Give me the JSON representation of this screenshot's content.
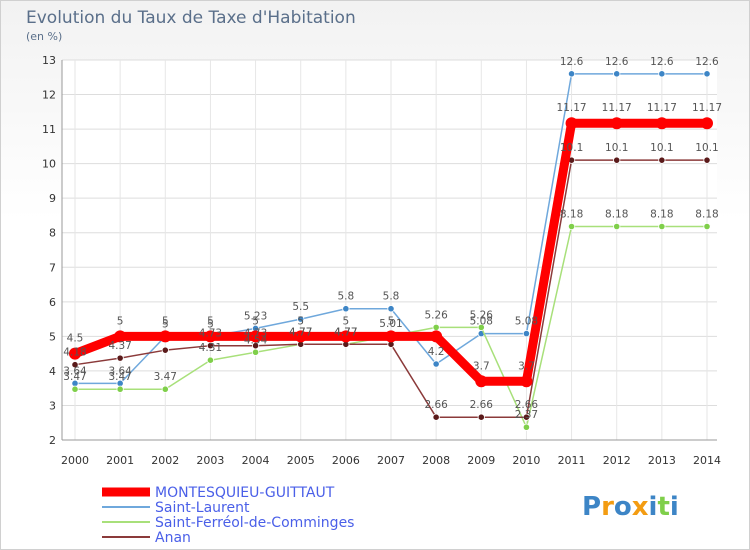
{
  "chart_data": {
    "type": "line",
    "title": "Evolution du Taux de Taxe d'Habitation",
    "subtitle": "(en %)",
    "xlabel": "",
    "ylabel": "",
    "ylim": [
      2,
      13
    ],
    "yticks": [
      2,
      3,
      4,
      5,
      6,
      7,
      8,
      9,
      10,
      11,
      12,
      13
    ],
    "grid": true,
    "legend_position": "bottom-left",
    "x": [
      "2000",
      "2001",
      "2002",
      "2003",
      "2004",
      "2005",
      "2006",
      "2007",
      "2008",
      "2009",
      "2010",
      "2011",
      "2012",
      "2013",
      "2014"
    ],
    "series": [
      {
        "name": "Saint-Laurent",
        "color": "#6fa8dc",
        "marker": "#3d85c6",
        "values": [
          3.64,
          3.64,
          5,
          5,
          5.23,
          5.5,
          5.8,
          5.8,
          4.2,
          5.08,
          5.08,
          12.6,
          12.6,
          12.6,
          12.6
        ],
        "labels": [
          "3.64",
          "3.64",
          "5",
          "5",
          "5.23",
          "5.5",
          "5.8",
          "5.8",
          "4.2",
          "5.08",
          "5.08",
          "12.6",
          "12.6",
          "12.6",
          "12.6"
        ]
      },
      {
        "name": "Saint-Ferréol-de-Comminges",
        "color": "#a8e07a",
        "marker": "#7fcf4a",
        "values": [
          3.47,
          3.47,
          3.47,
          4.31,
          4.54,
          4.77,
          4.77,
          5.01,
          5.26,
          5.26,
          2.37,
          8.18,
          8.18,
          8.18,
          8.18
        ],
        "labels": [
          "3.47",
          "3.47",
          "3.47",
          "4.31",
          "4.54",
          "4.77",
          "4.77",
          "5.01",
          "5.26",
          "5.26",
          "2.37",
          "8.18",
          "8.18",
          "8.18",
          "8.18"
        ]
      },
      {
        "name": "Anan",
        "color": "#8b3a3a",
        "marker": "#5a1a1a",
        "values": [
          4.18,
          4.37,
          4.6,
          4.73,
          4.73,
          4.77,
          4.77,
          4.77,
          2.66,
          2.66,
          2.66,
          10.1,
          10.1,
          10.1,
          10.1
        ],
        "labels": [
          "4.18",
          "4.37",
          "",
          "4.73",
          "4.73",
          "4.77",
          "4.77",
          "",
          "2.66",
          "2.66",
          "2.66",
          "10.1",
          "10.1",
          "10.1",
          "10.1"
        ]
      },
      {
        "name": "MONTESQUIEU-GUITTAUT",
        "color": "#ff0000",
        "marker": "#ff0000",
        "thick": true,
        "values": [
          4.5,
          5,
          5,
          5,
          5,
          5,
          5,
          5,
          5,
          3.7,
          3.7,
          11.17,
          11.17,
          11.17,
          11.17
        ],
        "labels": [
          "4.5",
          "5",
          "5",
          "5",
          "5",
          "5",
          "5",
          "5",
          "",
          "3.7",
          "3.7",
          "11.17",
          "11.17",
          "11.17",
          "11.17"
        ]
      }
    ],
    "legend": [
      {
        "name": "MONTESQUIEU-GUITTAUT",
        "color": "#ff0000",
        "thick": true
      },
      {
        "name": "Saint-Laurent",
        "color": "#6fa8dc",
        "thick": false
      },
      {
        "name": "Saint-Ferréol-de-Comminges",
        "color": "#a8e07a",
        "thick": false
      },
      {
        "name": "Anan",
        "color": "#8b3a3a",
        "thick": false
      }
    ]
  },
  "logo": {
    "text": "Proxiti",
    "letters": [
      "P",
      "r",
      "o",
      "x",
      "i",
      "t",
      "i"
    ],
    "colors": [
      "#3d85c6",
      "#f39c12",
      "#3d85c6",
      "#f39c12",
      "#3d85c6",
      "#7fcf4a",
      "#3d85c6"
    ]
  }
}
